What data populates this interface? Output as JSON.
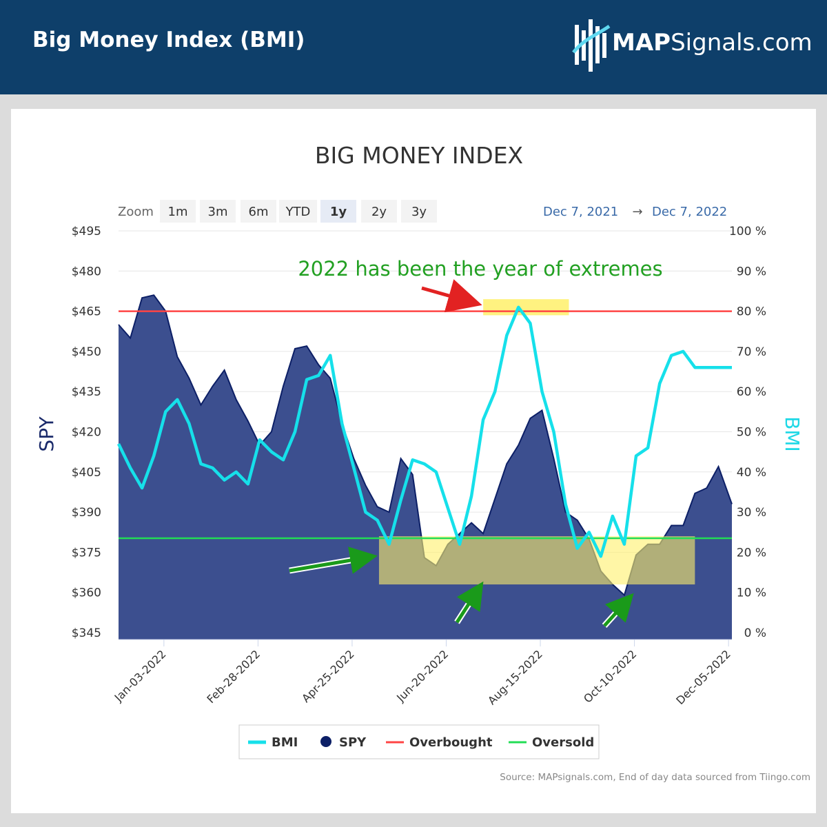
{
  "header": {
    "title": "Big Money Index (BMI)",
    "brand_bold": "MAP",
    "brand_rest": "Signals.com"
  },
  "chart": {
    "title": "BIG MONEY INDEX",
    "zoom_label": "Zoom",
    "zoom_buttons": [
      "1m",
      "3m",
      "6m",
      "YTD",
      "1y",
      "2y",
      "3y"
    ],
    "zoom_selected": "1y",
    "range_from": "Dec 7, 2021",
    "range_arrow": "→",
    "range_to": "Dec 7, 2022",
    "left_axis_title": "SPY",
    "right_axis_title": "BMI",
    "annotation": "2022 has been the year of extremes",
    "source": "Source: MAPsignals.com, End of day data sourced from Tiingo.com",
    "legend": [
      "BMI",
      "SPY",
      "Overbought",
      "Oversold"
    ]
  },
  "chart_data": {
    "type": "line",
    "x_start": "Dec-07-2021",
    "x_end": "Dec-07-2022",
    "x_tick_labels": [
      "Jan-03-2022",
      "Feb-28-2022",
      "Apr-25-2022",
      "Jun-20-2022",
      "Aug-15-2022",
      "Oct-10-2022",
      "Dec-05-2022"
    ],
    "left_axis": {
      "title": "SPY",
      "range": [
        345,
        495
      ],
      "ticks": [
        "$345",
        "$360",
        "$375",
        "$390",
        "$405",
        "$420",
        "$435",
        "$450",
        "$465",
        "$480",
        "$495"
      ]
    },
    "right_axis": {
      "title": "BMI",
      "range": [
        0,
        100
      ],
      "ticks": [
        "0 %",
        "10 %",
        "20 %",
        "30 %",
        "40 %",
        "50 %",
        "60 %",
        "70 %",
        "80 %",
        "90 %",
        "100 %"
      ]
    },
    "overbought_level": 80,
    "oversold_level": 23.5,
    "colors": {
      "bmi": "#16e0ea",
      "spy_line": "#0c1f66",
      "spy_fill": "#3c4f8f",
      "overbought": "#ff4444",
      "oversold": "#22dd55",
      "highlight": "#fff06a"
    },
    "series": [
      {
        "name": "BMI",
        "axis": "right",
        "x": [
          "2021-12-07",
          "2021-12-14",
          "2021-12-21",
          "2021-12-28",
          "2022-01-04",
          "2022-01-11",
          "2022-01-18",
          "2022-01-25",
          "2022-02-01",
          "2022-02-08",
          "2022-02-15",
          "2022-02-22",
          "2022-03-01",
          "2022-03-08",
          "2022-03-15",
          "2022-03-22",
          "2022-03-29",
          "2022-04-05",
          "2022-04-12",
          "2022-04-19",
          "2022-04-26",
          "2022-05-03",
          "2022-05-10",
          "2022-05-17",
          "2022-05-24",
          "2022-05-31",
          "2022-06-07",
          "2022-06-14",
          "2022-06-21",
          "2022-06-28",
          "2022-07-05",
          "2022-07-12",
          "2022-07-19",
          "2022-07-26",
          "2022-08-02",
          "2022-08-09",
          "2022-08-16",
          "2022-08-23",
          "2022-08-30",
          "2022-09-06",
          "2022-09-13",
          "2022-09-20",
          "2022-09-27",
          "2022-10-04",
          "2022-10-11",
          "2022-10-18",
          "2022-10-25",
          "2022-11-01",
          "2022-11-08",
          "2022-11-15",
          "2022-11-22",
          "2022-11-29",
          "2022-12-07"
        ],
        "y": [
          47,
          41,
          36,
          44,
          55,
          58,
          52,
          42,
          41,
          38,
          40,
          37,
          48,
          45,
          43,
          50,
          63,
          64,
          69,
          52,
          41,
          30,
          28,
          22,
          33,
          43,
          42,
          40,
          31,
          22,
          34,
          53,
          60,
          74,
          81,
          77,
          60,
          50,
          32,
          21,
          25,
          19,
          29,
          22,
          44,
          46,
          62,
          69,
          70,
          66,
          66,
          66,
          66
        ]
      },
      {
        "name": "SPY",
        "axis": "left",
        "x": [
          "2021-12-07",
          "2021-12-14",
          "2021-12-21",
          "2021-12-28",
          "2022-01-04",
          "2022-01-11",
          "2022-01-18",
          "2022-01-25",
          "2022-02-01",
          "2022-02-08",
          "2022-02-15",
          "2022-02-22",
          "2022-03-01",
          "2022-03-08",
          "2022-03-15",
          "2022-03-22",
          "2022-03-29",
          "2022-04-05",
          "2022-04-12",
          "2022-04-19",
          "2022-04-26",
          "2022-05-03",
          "2022-05-10",
          "2022-05-17",
          "2022-05-24",
          "2022-05-31",
          "2022-06-07",
          "2022-06-14",
          "2022-06-21",
          "2022-06-28",
          "2022-07-05",
          "2022-07-12",
          "2022-07-19",
          "2022-07-26",
          "2022-08-02",
          "2022-08-09",
          "2022-08-16",
          "2022-08-23",
          "2022-08-30",
          "2022-09-06",
          "2022-09-13",
          "2022-09-20",
          "2022-09-27",
          "2022-10-04",
          "2022-10-11",
          "2022-10-18",
          "2022-10-25",
          "2022-11-01",
          "2022-11-08",
          "2022-11-15",
          "2022-11-22",
          "2022-11-29",
          "2022-12-07"
        ],
        "y": [
          460,
          455,
          470,
          471,
          465,
          448,
          440,
          430,
          437,
          443,
          432,
          424,
          415,
          420,
          437,
          451,
          452,
          445,
          440,
          423,
          410,
          400,
          392,
          390,
          410,
          404,
          373,
          370,
          378,
          382,
          386,
          382,
          395,
          408,
          415,
          425,
          428,
          410,
          390,
          387,
          380,
          368,
          363,
          359,
          374,
          378,
          378,
          385,
          385,
          397,
          399,
          407,
          393
        ]
      }
    ],
    "highlights": [
      {
        "label": "overbought extreme",
        "x": [
          "2022-07-12",
          "2022-09-01"
        ],
        "y_percent": [
          79,
          83
        ]
      },
      {
        "label": "oversold extreme",
        "x": [
          "2022-05-11",
          "2022-11-15"
        ],
        "y_percent": [
          12,
          24
        ]
      }
    ]
  }
}
